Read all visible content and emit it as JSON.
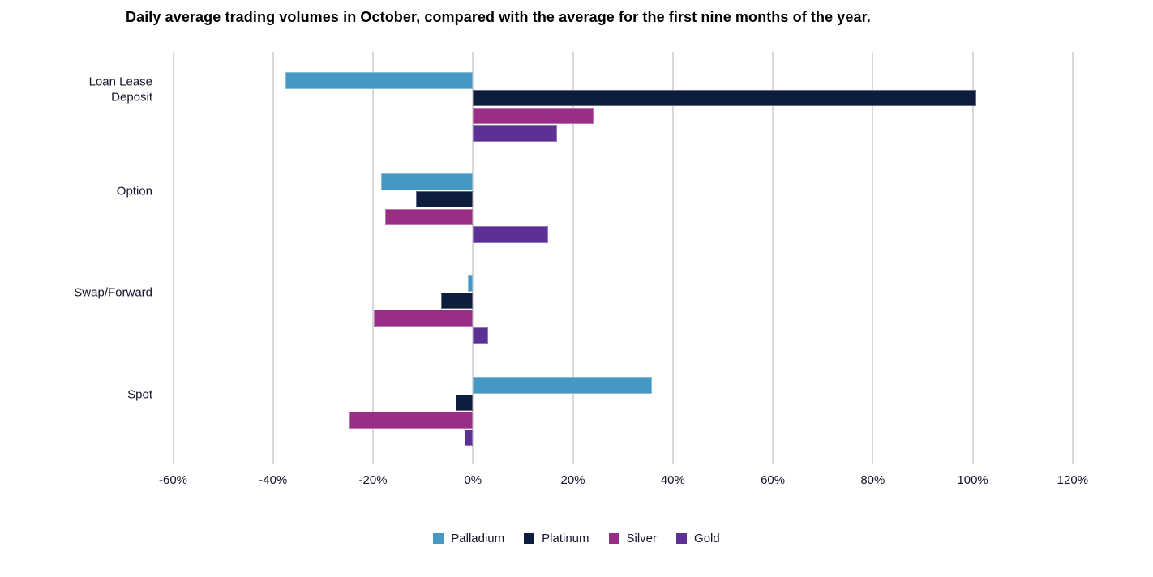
{
  "chart_data": {
    "type": "bar",
    "orientation": "horizontal",
    "title": "Daily average trading volumes in October, compared with the average for the first nine months of the year.",
    "categories": [
      "Loan Lease Deposit",
      "Option",
      "Swap/Forward",
      "Spot"
    ],
    "series": [
      {
        "name": "Palladium",
        "color": "#4698C4",
        "values": [
          -37.6,
          -18.4,
          -1.0,
          35.8
        ]
      },
      {
        "name": "Platinum",
        "color": "#0E1C3E",
        "values": [
          100.7,
          -11.4,
          -6.3,
          -3.4
        ]
      },
      {
        "name": "Silver",
        "color": "#9A2E86",
        "values": [
          24.2,
          -17.5,
          -19.9,
          -24.7
        ]
      },
      {
        "name": "Gold",
        "color": "#5C3094",
        "values": [
          16.9,
          15.0,
          3.1,
          -1.6
        ]
      }
    ],
    "x_ticks": [
      "-60%",
      "-40%",
      "-20%",
      "0%",
      "20%",
      "40%",
      "60%",
      "80%",
      "100%",
      "120%"
    ],
    "x_tick_values": [
      -60,
      -40,
      -20,
      0,
      20,
      40,
      60,
      80,
      100,
      120
    ],
    "xlim": [
      -60,
      120
    ],
    "unit": "%",
    "grid": true,
    "legend_position": "bottom"
  },
  "theme": {
    "grid_color": "#d9d9d9",
    "text_color": "#14142b",
    "title_color": "#131322",
    "background": "#ffffff"
  }
}
